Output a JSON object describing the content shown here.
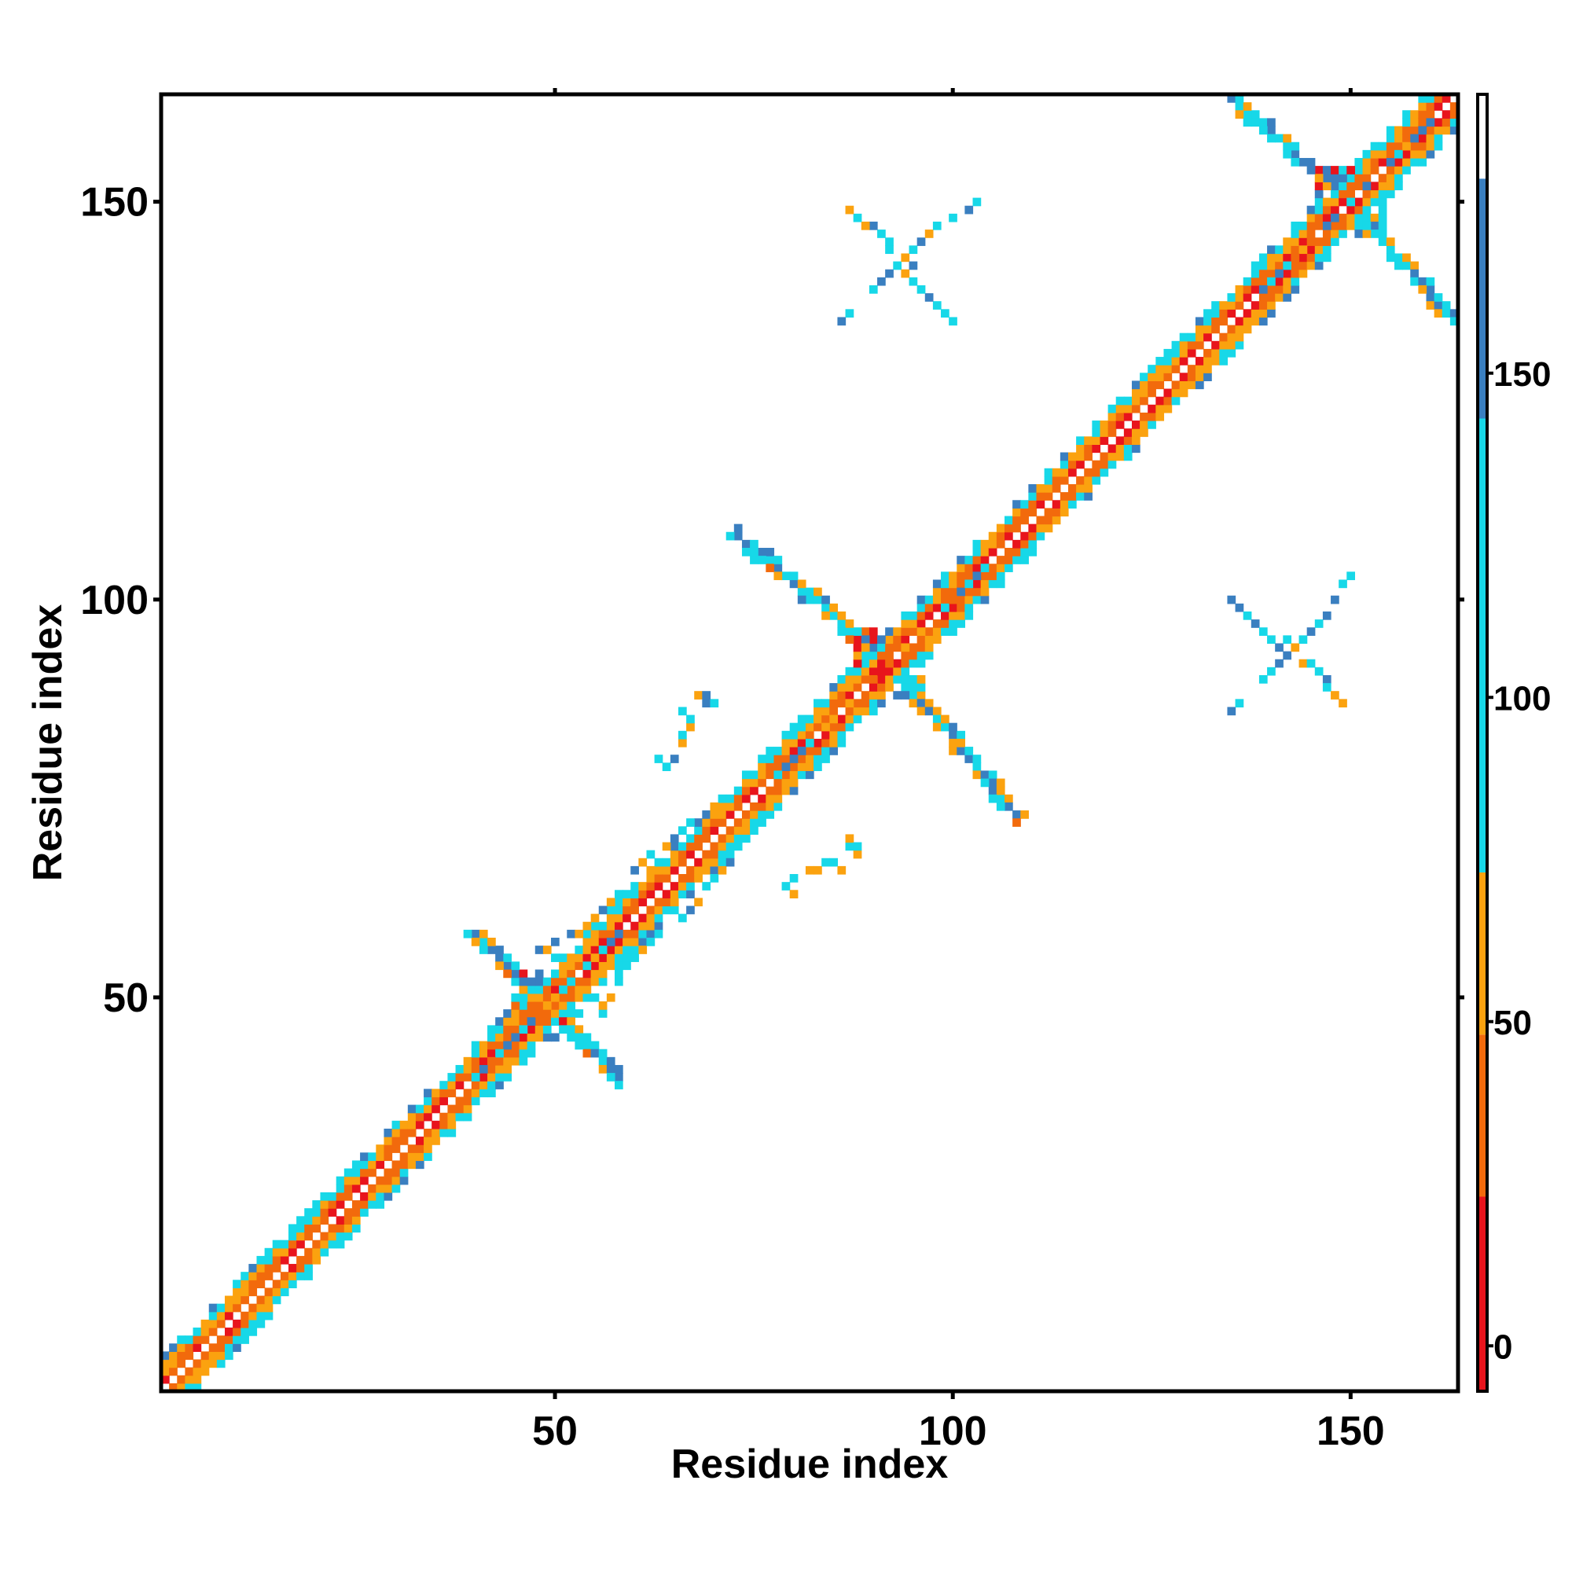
{
  "chart_data": {
    "type": "heatmap",
    "title": "",
    "xlabel": "Residue index",
    "ylabel": "Residue index",
    "xlim": [
      1,
      163
    ],
    "ylim": [
      1,
      163
    ],
    "x_ticks": [
      "50",
      "100",
      "150"
    ],
    "y_ticks": [
      "50",
      "100",
      "150"
    ],
    "colorbar": {
      "ticks": [
        "0",
        "50",
        "100",
        "150"
      ],
      "range": [
        -7,
        193
      ],
      "bands": [
        {
          "from": -7,
          "to": 23,
          "color": "#e8141c"
        },
        {
          "from": 23,
          "to": 48,
          "color": "#f26a0c"
        },
        {
          "from": 48,
          "to": 73,
          "color": "#fba20f"
        },
        {
          "from": 73,
          "to": 143,
          "color": "#17d8e8"
        },
        {
          "from": 143,
          "to": 180,
          "color": "#3a7fc0"
        },
        {
          "from": 180,
          "to": 193,
          "color": "#ffffff"
        }
      ]
    },
    "diagonal_band": {
      "near_offset": 3,
      "cross_offset": 3,
      "range": [
        1,
        163
      ]
    },
    "features": [
      {
        "type": "x-contact",
        "center": [
          48,
          50
        ],
        "arms": [
          [
            40,
            58
          ],
          [
            58,
            40
          ],
          [
            40,
            40
          ],
          [
            58,
            58
          ]
        ]
      },
      {
        "type": "x-contact",
        "center": [
          91,
          93
        ],
        "arms": [
          [
            73,
            108
          ],
          [
            108,
            73
          ],
          [
            78,
            78
          ],
          [
            104,
            104
          ]
        ]
      },
      {
        "type": "x-contact",
        "center": [
          149,
          151
        ],
        "arms": [
          [
            134,
            164
          ],
          [
            164,
            134
          ],
          [
            139,
            139
          ],
          [
            160,
            160
          ]
        ]
      },
      {
        "type": "arc",
        "points": [
          [
            47,
            55
          ],
          [
            53,
            58
          ],
          [
            57,
            62
          ],
          [
            61,
            67
          ],
          [
            65,
            70
          ],
          [
            69,
            73
          ],
          [
            72,
            76
          ]
        ]
      },
      {
        "type": "arc",
        "points": [
          [
            78,
            64
          ],
          [
            83,
            66
          ],
          [
            86,
            68
          ],
          [
            88,
            71
          ]
        ]
      },
      {
        "type": "arc",
        "points": [
          [
            85,
            134
          ],
          [
            90,
            139
          ],
          [
            95,
            144
          ],
          [
            100,
            148
          ],
          [
            104,
            150
          ]
        ]
      },
      {
        "type": "arc",
        "points": [
          [
            135,
            100
          ],
          [
            139,
            96
          ],
          [
            142,
            93
          ],
          [
            146,
            91
          ],
          [
            148,
            88
          ]
        ]
      }
    ]
  }
}
